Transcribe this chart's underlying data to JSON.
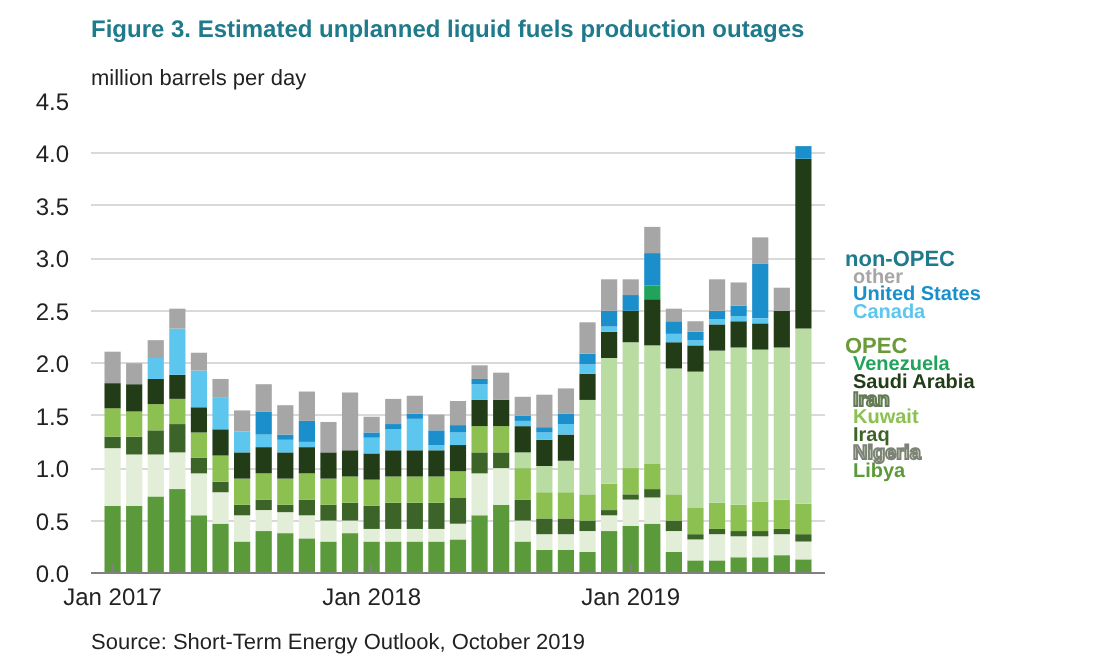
{
  "chart_data": {
    "type": "bar",
    "stacked": true,
    "title": "Figure 3. Estimated unplanned liquid fuels production outages",
    "ylabel": "million barrels per day",
    "annotations": [
      "non-OPEC",
      "OPEC",
      "Source: Short-Term Energy Outlook, October 2019"
    ],
    "x": [
      "2017-01",
      "2017-02",
      "2017-03",
      "2017-04",
      "2017-05",
      "2017-06",
      "2017-07",
      "2017-08",
      "2017-09",
      "2017-10",
      "2017-11",
      "2017-12",
      "2018-01",
      "2018-02",
      "2018-03",
      "2018-04",
      "2018-05",
      "2018-06",
      "2018-07",
      "2018-08",
      "2018-09",
      "2018-10",
      "2018-11",
      "2018-12",
      "2019-01",
      "2019-02",
      "2019-03",
      "2019-04",
      "2019-05",
      "2019-06",
      "2019-07",
      "2019-08",
      "2019-09"
    ],
    "xlim": [
      "2016-12",
      "2019-10"
    ],
    "xticks": [
      {
        "value": "2017-01",
        "label": "Jan 2017"
      },
      {
        "value": "2018-01",
        "label": "Jan 2018"
      },
      {
        "value": "2019-01",
        "label": "Jan 2019"
      }
    ],
    "ylim": [
      0,
      4.5
    ],
    "yticks": [
      {
        "value": 0,
        "label": "0.0"
      },
      0.5,
      {
        "value": 1,
        "label": "1.0"
      },
      1.5,
      {
        "value": 2,
        "label": "2.0"
      },
      2.5,
      {
        "value": 3,
        "label": "3.0"
      },
      3.5,
      {
        "value": 4,
        "label": "4.0"
      },
      4.5
    ],
    "grid": "y",
    "series": [
      {
        "name": "Libya",
        "color": "#5b9a3a",
        "values": [
          0.64,
          0.64,
          0.73,
          0.8,
          0.55,
          0.47,
          0.3,
          0.4,
          0.38,
          0.33,
          0.3,
          0.38,
          0.3,
          0.3,
          0.3,
          0.3,
          0.32,
          0.55,
          0.65,
          0.3,
          0.22,
          0.22,
          0.2,
          0.4,
          0.45,
          0.47,
          0.2,
          0.12,
          0.12,
          0.15,
          0.15,
          0.17,
          0.13
        ]
      },
      {
        "name": "Nigeria",
        "color": "#e3eed8",
        "values": [
          0.55,
          0.49,
          0.4,
          0.35,
          0.4,
          0.3,
          0.25,
          0.2,
          0.2,
          0.22,
          0.2,
          0.12,
          0.12,
          0.12,
          0.12,
          0.12,
          0.15,
          0.4,
          0.35,
          0.2,
          0.15,
          0.15,
          0.2,
          0.15,
          0.25,
          0.25,
          0.2,
          0.2,
          0.25,
          0.2,
          0.2,
          0.2,
          0.17
        ]
      },
      {
        "name": "Iraq",
        "color": "#3d6428",
        "values": [
          0.11,
          0.17,
          0.23,
          0.27,
          0.15,
          0.1,
          0.1,
          0.1,
          0.07,
          0.15,
          0.15,
          0.17,
          0.22,
          0.25,
          0.25,
          0.25,
          0.25,
          0.2,
          0.15,
          0.2,
          0.15,
          0.15,
          0.1,
          0.05,
          0.05,
          0.08,
          0.1,
          0.05,
          0.05,
          0.05,
          0.05,
          0.05,
          0.07
        ]
      },
      {
        "name": "Kuwait",
        "color": "#8cc152",
        "values": [
          0.27,
          0.24,
          0.25,
          0.24,
          0.24,
          0.25,
          0.25,
          0.25,
          0.25,
          0.25,
          0.25,
          0.25,
          0.25,
          0.25,
          0.25,
          0.25,
          0.25,
          0.25,
          0.25,
          0.3,
          0.25,
          0.25,
          0.25,
          0.25,
          0.25,
          0.24,
          0.25,
          0.25,
          0.25,
          0.25,
          0.28,
          0.28,
          0.29
        ]
      },
      {
        "name": "Iran",
        "color": "#b9dca2",
        "values": [
          null,
          null,
          null,
          null,
          null,
          null,
          null,
          null,
          null,
          null,
          null,
          null,
          null,
          null,
          null,
          null,
          null,
          null,
          null,
          0.15,
          0.25,
          0.3,
          0.9,
          1.2,
          1.2,
          1.13,
          1.2,
          1.3,
          1.45,
          1.5,
          1.45,
          1.45,
          1.67
        ]
      },
      {
        "name": "Saudi Arabia",
        "color": "#213c16",
        "values": [
          0.24,
          0.26,
          0.24,
          0.23,
          0.24,
          0.25,
          0.25,
          0.25,
          0.25,
          0.25,
          0.25,
          0.25,
          0.25,
          0.25,
          0.25,
          0.25,
          0.25,
          0.25,
          0.25,
          0.25,
          0.25,
          0.25,
          0.25,
          0.25,
          0.3,
          0.44,
          0.25,
          0.25,
          0.25,
          0.25,
          0.25,
          0.35,
          1.62
        ]
      },
      {
        "name": "Venezuela",
        "color": "#21a35c",
        "values": [
          null,
          null,
          null,
          null,
          null,
          null,
          null,
          null,
          null,
          null,
          null,
          null,
          null,
          null,
          null,
          null,
          null,
          null,
          null,
          null,
          null,
          null,
          null,
          null,
          null,
          0.13,
          null,
          null,
          null,
          null,
          null,
          null,
          null
        ]
      },
      {
        "name": "Canada",
        "color": "#5cc6ef",
        "values": [
          null,
          null,
          0.2,
          0.44,
          0.35,
          0.3,
          0.2,
          0.12,
          0.12,
          0.05,
          null,
          null,
          0.15,
          0.2,
          0.3,
          0.05,
          0.12,
          0.15,
          null,
          0.05,
          0.07,
          0.1,
          0.09,
          0.05,
          null,
          null,
          0.08,
          0.05,
          0.05,
          0.05,
          0.05,
          null,
          null
        ]
      },
      {
        "name": "United States",
        "color": "#1a8fcb",
        "values": [
          null,
          null,
          null,
          null,
          null,
          null,
          null,
          0.22,
          0.05,
          0.2,
          null,
          null,
          0.05,
          0.05,
          0.05,
          0.14,
          0.07,
          0.05,
          null,
          0.05,
          0.05,
          0.1,
          0.1,
          0.15,
          0.15,
          0.31,
          0.12,
          0.08,
          0.08,
          0.1,
          0.52,
          null,
          0.12
        ]
      },
      {
        "name": "other",
        "color": "#a6a6a6",
        "values": [
          0.3,
          0.2,
          0.17,
          0.19,
          0.17,
          0.18,
          0.2,
          0.26,
          0.28,
          0.28,
          0.29,
          0.55,
          0.15,
          0.24,
          0.17,
          0.15,
          0.23,
          0.13,
          0.26,
          0.18,
          0.31,
          0.24,
          0.3,
          0.3,
          0.15,
          0.25,
          0.12,
          0.1,
          0.3,
          0.22,
          0.25,
          0.22,
          null
        ]
      }
    ]
  }
}
